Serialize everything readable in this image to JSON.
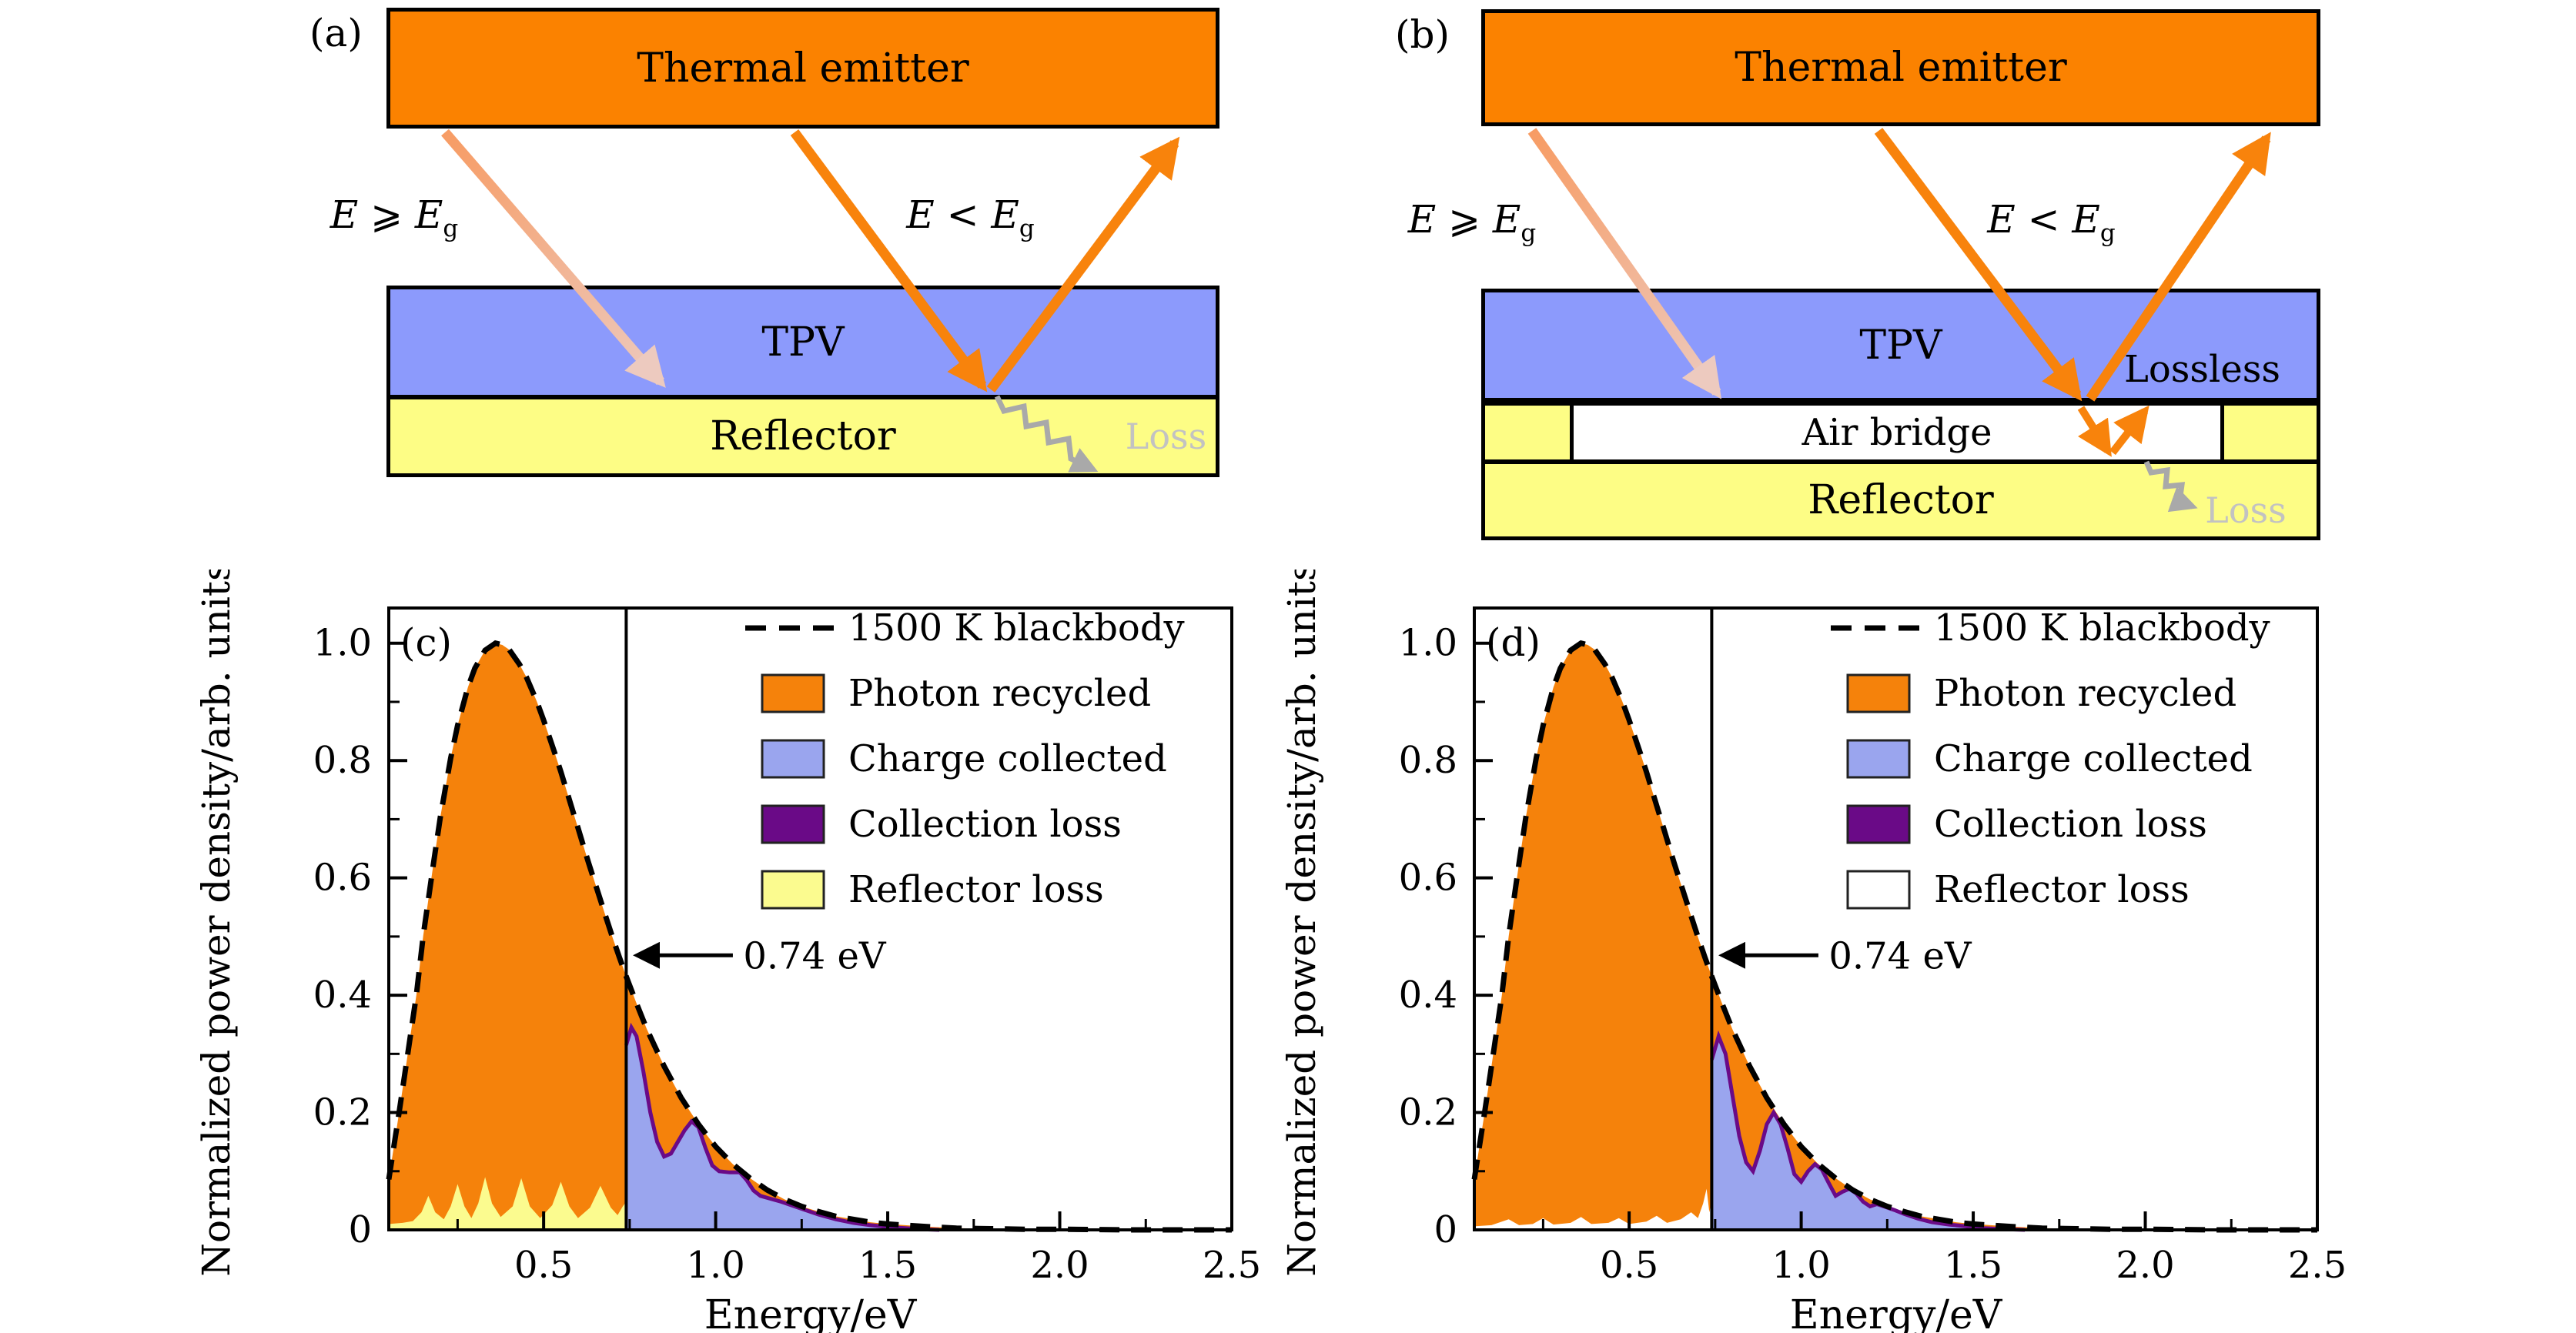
{
  "panel_a": {
    "label": "(a)",
    "emitter_label": "Thermal emitter",
    "tpv_label": "TPV",
    "reflector_label": "Reflector",
    "loss_label": "Loss",
    "e_above_gap": {
      "lhs": "E",
      "op": " ⩾ ",
      "rhs": "E",
      "sub": "g"
    },
    "e_below_gap": {
      "lhs": "E",
      "op": " < ",
      "rhs": "E",
      "sub": "g"
    }
  },
  "panel_b": {
    "label": "(b)",
    "emitter_label": "Thermal emitter",
    "tpv_label": "TPV",
    "air_bridge_label": "Air bridge",
    "reflector_label": "Reflector",
    "lossless_label": "Lossless",
    "loss_label": "Loss",
    "e_above_gap": {
      "lhs": "E",
      "op": " ⩾ ",
      "rhs": "E",
      "sub": "g"
    },
    "e_below_gap": {
      "lhs": "E",
      "op": " < ",
      "rhs": "E",
      "sub": "g"
    }
  },
  "colors": {
    "emitter_orange": "#fb8200",
    "arrow_orange": "#f8830c",
    "tpv_blue": "#8c9afc",
    "reflector_yellow": "#fdfd85",
    "air_bridge_white": "#ffffff",
    "loss_gray": "#a9a9a9",
    "loss_text_gray": "#c2c2c2",
    "pink_arrow_start": "#f79c64",
    "pink_arrow_end": "#edcabf",
    "black": "#000000"
  },
  "chart_data": [
    {
      "id": "c",
      "panel_label": "(c)",
      "type": "area",
      "title": "",
      "xlabel": "Energy/eV",
      "ylabel": "Normalized power density/arb. units",
      "xlim": [
        0.05,
        2.5
      ],
      "ylim": [
        0,
        1.06
      ],
      "grid": false,
      "legend_position": "upper right",
      "xticks": [
        {
          "v": 0.5,
          "label": "0.5"
        },
        {
          "v": 1.0,
          "label": "1.0"
        },
        {
          "v": 1.5,
          "label": "1.5"
        },
        {
          "v": 2.0,
          "label": "2.0"
        },
        {
          "v": 2.5,
          "label": "2.5"
        }
      ],
      "yticks": [
        {
          "v": 0,
          "label": "0"
        },
        {
          "v": 0.2,
          "label": "0.2"
        },
        {
          "v": 0.4,
          "label": "0.4"
        },
        {
          "v": 0.6,
          "label": "0.6"
        },
        {
          "v": 0.8,
          "label": "0.8"
        },
        {
          "v": 1.0,
          "label": "1.0"
        }
      ],
      "bandgap_ev": 0.74,
      "annotation": {
        "text": "0.74 eV",
        "y": 0.468,
        "from_ev": 1.05,
        "to_ev": 0.775,
        "text_ev": 1.08
      },
      "legend": [
        {
          "label": "1500 K blackbody",
          "swatch": "dashed-line",
          "color": "#000000"
        },
        {
          "label": "Photon recycled",
          "swatch": "patch",
          "color": "#f5820b"
        },
        {
          "label": "Charge collected",
          "swatch": "patch",
          "color": "#9aa5ee"
        },
        {
          "label": "Collection loss",
          "swatch": "patch",
          "color": "#6a0a87"
        },
        {
          "label": "Reflector loss",
          "swatch": "patch",
          "color": "#fbfb8f"
        }
      ],
      "colors": {
        "photon_recycled": "#f5820b",
        "charge_collected": "#9aa5ee",
        "collection_loss": "#6a0a87",
        "reflector_loss": "#fbfb8f"
      },
      "series": {
        "blackbody": [
          [
            0.05,
            0.086
          ],
          [
            0.08,
            0.2
          ],
          [
            0.1,
            0.279
          ],
          [
            0.13,
            0.4
          ],
          [
            0.15,
            0.501
          ],
          [
            0.18,
            0.625
          ],
          [
            0.2,
            0.704
          ],
          [
            0.23,
            0.804
          ],
          [
            0.25,
            0.86
          ],
          [
            0.28,
            0.925
          ],
          [
            0.3,
            0.957
          ],
          [
            0.33,
            0.988
          ],
          [
            0.36,
            1.0
          ],
          [
            0.38,
            0.997
          ],
          [
            0.4,
            0.989
          ],
          [
            0.43,
            0.964
          ],
          [
            0.45,
            0.942
          ],
          [
            0.48,
            0.901
          ],
          [
            0.5,
            0.869
          ],
          [
            0.53,
            0.817
          ],
          [
            0.55,
            0.781
          ],
          [
            0.58,
            0.723
          ],
          [
            0.6,
            0.685
          ],
          [
            0.63,
            0.627
          ],
          [
            0.65,
            0.59
          ],
          [
            0.68,
            0.535
          ],
          [
            0.7,
            0.499
          ],
          [
            0.72,
            0.465
          ],
          [
            0.74,
            0.432
          ],
          [
            0.77,
            0.386
          ],
          [
            0.8,
            0.342
          ],
          [
            0.85,
            0.279
          ],
          [
            0.9,
            0.225
          ],
          [
            0.95,
            0.18
          ],
          [
            1.0,
            0.142
          ],
          [
            1.05,
            0.112
          ],
          [
            1.1,
            0.088
          ],
          [
            1.15,
            0.068
          ],
          [
            1.2,
            0.052
          ],
          [
            1.25,
            0.04
          ],
          [
            1.3,
            0.031
          ],
          [
            1.35,
            0.023
          ],
          [
            1.4,
            0.018
          ],
          [
            1.45,
            0.013
          ],
          [
            1.5,
            0.01
          ],
          [
            1.55,
            0.008
          ],
          [
            1.6,
            0.006
          ],
          [
            1.7,
            0.003
          ],
          [
            1.8,
            0.002
          ],
          [
            1.9,
            0.001
          ],
          [
            2.0,
            0.001
          ],
          [
            2.2,
            0.0
          ],
          [
            2.5,
            0.0
          ]
        ],
        "charge_collected": [
          [
            0.74,
            0.315
          ],
          [
            0.755,
            0.345
          ],
          [
            0.77,
            0.33
          ],
          [
            0.79,
            0.27
          ],
          [
            0.81,
            0.2
          ],
          [
            0.83,
            0.15
          ],
          [
            0.85,
            0.125
          ],
          [
            0.87,
            0.13
          ],
          [
            0.89,
            0.15
          ],
          [
            0.91,
            0.17
          ],
          [
            0.93,
            0.185
          ],
          [
            0.95,
            0.175
          ],
          [
            0.97,
            0.14
          ],
          [
            0.99,
            0.11
          ],
          [
            1.01,
            0.1
          ],
          [
            1.04,
            0.098
          ],
          [
            1.07,
            0.098
          ],
          [
            1.09,
            0.085
          ],
          [
            1.11,
            0.067
          ],
          [
            1.13,
            0.058
          ],
          [
            1.16,
            0.053
          ],
          [
            1.19,
            0.048
          ],
          [
            1.22,
            0.042
          ],
          [
            1.26,
            0.034
          ],
          [
            1.3,
            0.026
          ],
          [
            1.35,
            0.018
          ],
          [
            1.4,
            0.012
          ],
          [
            1.45,
            0.008
          ],
          [
            1.5,
            0.005
          ],
          [
            1.55,
            0.003
          ],
          [
            1.6,
            0.001
          ],
          [
            1.65,
            0.0
          ]
        ],
        "reflector_loss": [
          [
            0.05,
            0.01
          ],
          [
            0.09,
            0.012
          ],
          [
            0.12,
            0.015
          ],
          [
            0.145,
            0.03
          ],
          [
            0.165,
            0.058
          ],
          [
            0.185,
            0.03
          ],
          [
            0.21,
            0.018
          ],
          [
            0.23,
            0.04
          ],
          [
            0.25,
            0.078
          ],
          [
            0.27,
            0.04
          ],
          [
            0.29,
            0.02
          ],
          [
            0.31,
            0.045
          ],
          [
            0.33,
            0.09
          ],
          [
            0.35,
            0.045
          ],
          [
            0.375,
            0.022
          ],
          [
            0.41,
            0.04
          ],
          [
            0.435,
            0.088
          ],
          [
            0.46,
            0.04
          ],
          [
            0.49,
            0.02
          ],
          [
            0.525,
            0.042
          ],
          [
            0.55,
            0.082
          ],
          [
            0.575,
            0.04
          ],
          [
            0.6,
            0.02
          ],
          [
            0.635,
            0.038
          ],
          [
            0.665,
            0.075
          ],
          [
            0.695,
            0.038
          ],
          [
            0.715,
            0.025
          ],
          [
            0.73,
            0.04
          ],
          [
            0.74,
            0.048
          ]
        ]
      }
    },
    {
      "id": "d",
      "panel_label": "(d)",
      "type": "area",
      "title": "",
      "xlabel": "Energy/eV",
      "ylabel": "Normalized power density/arb. units",
      "xlim": [
        0.05,
        2.5
      ],
      "ylim": [
        0,
        1.06
      ],
      "grid": false,
      "legend_position": "upper right",
      "xticks": [
        {
          "v": 0.5,
          "label": "0.5"
        },
        {
          "v": 1.0,
          "label": "1.0"
        },
        {
          "v": 1.5,
          "label": "1.5"
        },
        {
          "v": 2.0,
          "label": "2.0"
        },
        {
          "v": 2.5,
          "label": "2.5"
        }
      ],
      "yticks": [
        {
          "v": 0,
          "label": "0"
        },
        {
          "v": 0.2,
          "label": "0.2"
        },
        {
          "v": 0.4,
          "label": "0.4"
        },
        {
          "v": 0.6,
          "label": "0.6"
        },
        {
          "v": 0.8,
          "label": "0.8"
        },
        {
          "v": 1.0,
          "label": "1.0"
        }
      ],
      "bandgap_ev": 0.74,
      "annotation": {
        "text": "0.74 eV",
        "y": 0.468,
        "from_ev": 1.05,
        "to_ev": 0.775,
        "text_ev": 1.08
      },
      "legend": [
        {
          "label": "1500 K blackbody",
          "swatch": "dashed-line",
          "color": "#000000"
        },
        {
          "label": "Photon recycled",
          "swatch": "patch",
          "color": "#f5820b"
        },
        {
          "label": "Charge collected",
          "swatch": "patch",
          "color": "#9aa5ee"
        },
        {
          "label": "Collection loss",
          "swatch": "patch",
          "color": "#6a0a87"
        },
        {
          "label": "Reflector loss",
          "swatch": "patch",
          "color": "#ffffff"
        }
      ],
      "colors": {
        "photon_recycled": "#f5820b",
        "charge_collected": "#9aa5ee",
        "collection_loss": "#6a0a87",
        "reflector_loss": "#ffffff"
      },
      "series": {
        "blackbody": [
          [
            0.05,
            0.086
          ],
          [
            0.08,
            0.2
          ],
          [
            0.1,
            0.279
          ],
          [
            0.13,
            0.4
          ],
          [
            0.15,
            0.501
          ],
          [
            0.18,
            0.625
          ],
          [
            0.2,
            0.704
          ],
          [
            0.23,
            0.804
          ],
          [
            0.25,
            0.86
          ],
          [
            0.28,
            0.925
          ],
          [
            0.3,
            0.957
          ],
          [
            0.33,
            0.988
          ],
          [
            0.36,
            1.0
          ],
          [
            0.38,
            0.997
          ],
          [
            0.4,
            0.989
          ],
          [
            0.43,
            0.964
          ],
          [
            0.45,
            0.942
          ],
          [
            0.48,
            0.901
          ],
          [
            0.5,
            0.869
          ],
          [
            0.53,
            0.817
          ],
          [
            0.55,
            0.781
          ],
          [
            0.58,
            0.723
          ],
          [
            0.6,
            0.685
          ],
          [
            0.63,
            0.627
          ],
          [
            0.65,
            0.59
          ],
          [
            0.68,
            0.535
          ],
          [
            0.7,
            0.499
          ],
          [
            0.72,
            0.465
          ],
          [
            0.74,
            0.432
          ],
          [
            0.77,
            0.386
          ],
          [
            0.8,
            0.342
          ],
          [
            0.85,
            0.279
          ],
          [
            0.9,
            0.225
          ],
          [
            0.95,
            0.18
          ],
          [
            1.0,
            0.142
          ],
          [
            1.05,
            0.112
          ],
          [
            1.1,
            0.088
          ],
          [
            1.15,
            0.068
          ],
          [
            1.2,
            0.052
          ],
          [
            1.25,
            0.04
          ],
          [
            1.3,
            0.031
          ],
          [
            1.35,
            0.023
          ],
          [
            1.4,
            0.018
          ],
          [
            1.45,
            0.013
          ],
          [
            1.5,
            0.01
          ],
          [
            1.55,
            0.008
          ],
          [
            1.6,
            0.006
          ],
          [
            1.7,
            0.003
          ],
          [
            1.8,
            0.002
          ],
          [
            1.9,
            0.001
          ],
          [
            2.0,
            0.001
          ],
          [
            2.2,
            0.0
          ],
          [
            2.5,
            0.0
          ]
        ],
        "charge_collected": [
          [
            0.74,
            0.29
          ],
          [
            0.76,
            0.33
          ],
          [
            0.78,
            0.3
          ],
          [
            0.8,
            0.23
          ],
          [
            0.82,
            0.16
          ],
          [
            0.84,
            0.115
          ],
          [
            0.86,
            0.1
          ],
          [
            0.88,
            0.135
          ],
          [
            0.9,
            0.18
          ],
          [
            0.92,
            0.2
          ],
          [
            0.94,
            0.18
          ],
          [
            0.96,
            0.14
          ],
          [
            0.98,
            0.095
          ],
          [
            1.0,
            0.082
          ],
          [
            1.02,
            0.1
          ],
          [
            1.04,
            0.112
          ],
          [
            1.06,
            0.103
          ],
          [
            1.08,
            0.08
          ],
          [
            1.1,
            0.058
          ],
          [
            1.12,
            0.065
          ],
          [
            1.14,
            0.07
          ],
          [
            1.16,
            0.062
          ],
          [
            1.18,
            0.048
          ],
          [
            1.2,
            0.04
          ],
          [
            1.22,
            0.044
          ],
          [
            1.24,
            0.04
          ],
          [
            1.27,
            0.034
          ],
          [
            1.3,
            0.027
          ],
          [
            1.34,
            0.019
          ],
          [
            1.38,
            0.013
          ],
          [
            1.43,
            0.009
          ],
          [
            1.48,
            0.006
          ],
          [
            1.53,
            0.003
          ],
          [
            1.6,
            0.001
          ],
          [
            1.65,
            0.0
          ]
        ],
        "reflector_loss": [
          [
            0.05,
            0.006
          ],
          [
            0.1,
            0.008
          ],
          [
            0.15,
            0.018
          ],
          [
            0.18,
            0.008
          ],
          [
            0.22,
            0.01
          ],
          [
            0.25,
            0.02
          ],
          [
            0.28,
            0.009
          ],
          [
            0.33,
            0.012
          ],
          [
            0.36,
            0.022
          ],
          [
            0.39,
            0.01
          ],
          [
            0.44,
            0.012
          ],
          [
            0.47,
            0.02
          ],
          [
            0.5,
            0.01
          ],
          [
            0.55,
            0.014
          ],
          [
            0.58,
            0.024
          ],
          [
            0.61,
            0.012
          ],
          [
            0.65,
            0.018
          ],
          [
            0.68,
            0.03
          ],
          [
            0.7,
            0.02
          ],
          [
            0.715,
            0.045
          ],
          [
            0.725,
            0.07
          ],
          [
            0.733,
            0.03
          ],
          [
            0.74,
            0.05
          ]
        ]
      }
    }
  ]
}
